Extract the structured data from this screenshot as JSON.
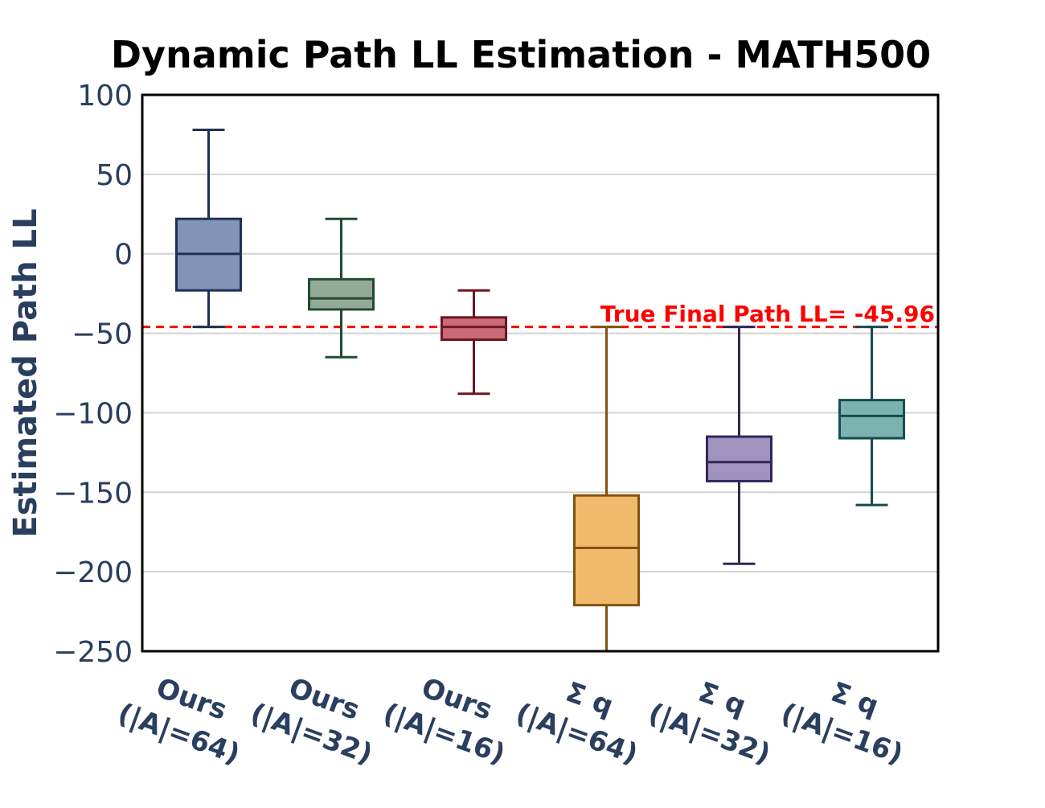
{
  "chart_data": {
    "type": "box",
    "title": "Dynamic Path LL Estimation - MATH500",
    "xlabel": "",
    "ylabel": "Estimated Path LL",
    "ylim": [
      -250,
      100
    ],
    "yticks": [
      100,
      50,
      0,
      -50,
      -100,
      -150,
      -200,
      -250
    ],
    "ytick_labels": [
      "100",
      "50",
      "0",
      "−50",
      "−100",
      "−150",
      "−200",
      "−250"
    ],
    "grid": true,
    "legend": "none",
    "reference_line": {
      "value": -45.96,
      "label": "True Final Path LL= -45.96",
      "color": "#ff0000",
      "style": "dashed"
    },
    "boxes": [
      {
        "label_line1": "Ours",
        "label_line2": "(|A|=64)",
        "whisker_high": 78,
        "q3": 22,
        "median": 0,
        "q1": -23,
        "whisker_low": -46,
        "fill": "#8393b5",
        "stroke": "#1e3255"
      },
      {
        "label_line1": "Ours",
        "label_line2": "(|A|=32)",
        "whisker_high": 22,
        "q3": -16,
        "median": -28,
        "q1": -35,
        "whisker_low": -65,
        "fill": "#93aa99",
        "stroke": "#234a33"
      },
      {
        "label_line1": "Ours",
        "label_line2": "(|A|=16)",
        "whisker_high": -23,
        "q3": -40,
        "median": -46,
        "q1": -54,
        "whisker_low": -88,
        "fill": "#c96b76",
        "stroke": "#6e1520"
      },
      {
        "label_line1": "Σ q",
        "label_line2": "(|A|=64)",
        "whisker_high": -46,
        "q3": -152,
        "median": -185,
        "q1": -221,
        "whisker_low": -250,
        "fill": "#f0b96c",
        "stroke": "#83520f"
      },
      {
        "label_line1": "Σ q",
        "label_line2": "(|A|=32)",
        "whisker_high": -46,
        "q3": -115,
        "median": -131,
        "q1": -143,
        "whisker_low": -195,
        "fill": "#a193bf",
        "stroke": "#32265a"
      },
      {
        "label_line1": "Σ q",
        "label_line2": "(|A|=16)",
        "whisker_high": -46,
        "q3": -92,
        "median": -102,
        "q1": -116,
        "whisker_low": -158,
        "fill": "#7cb2b0",
        "stroke": "#154d4f"
      }
    ]
  }
}
